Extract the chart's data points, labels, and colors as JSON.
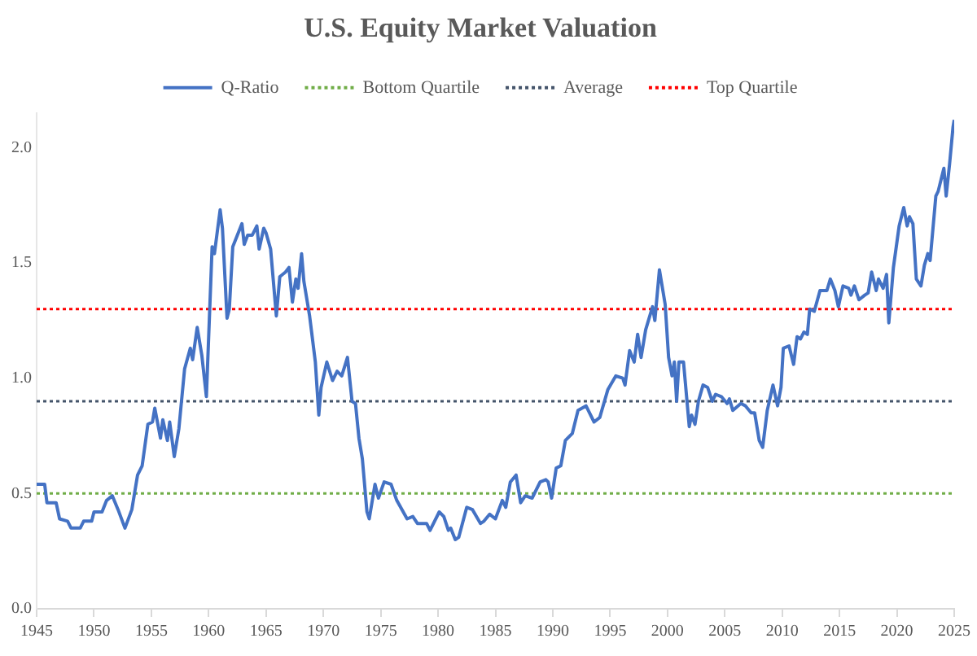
{
  "chart_data": {
    "type": "line",
    "title": "U.S. Equity Market Valuation",
    "x": [
      1945.0,
      1945.7,
      1945.9,
      1946.7,
      1947.0,
      1947.7,
      1948.0,
      1948.8,
      1949.1,
      1949.8,
      1950.0,
      1950.7,
      1951.1,
      1951.6,
      1952.1,
      1952.7,
      1953.3,
      1953.8,
      1954.2,
      1954.7,
      1955.1,
      1955.3,
      1955.8,
      1956.0,
      1956.4,
      1956.6,
      1957.0,
      1957.4,
      1957.9,
      1958.4,
      1958.6,
      1959.0,
      1959.4,
      1959.8,
      1960.3,
      1960.5,
      1961.0,
      1961.2,
      1961.6,
      1961.8,
      1962.1,
      1962.9,
      1963.1,
      1963.4,
      1963.8,
      1964.2,
      1964.4,
      1964.8,
      1965.0,
      1965.4,
      1965.9,
      1966.2,
      1966.7,
      1967.0,
      1967.3,
      1967.6,
      1967.8,
      1968.1,
      1968.3,
      1968.8,
      1969.3,
      1969.6,
      1969.8,
      1970.3,
      1970.8,
      1971.2,
      1971.6,
      1972.1,
      1972.5,
      1972.8,
      1973.1,
      1973.4,
      1973.8,
      1974.0,
      1974.5,
      1974.8,
      1975.3,
      1975.9,
      1976.4,
      1977.3,
      1977.8,
      1978.2,
      1979.0,
      1979.3,
      1980.1,
      1980.5,
      1980.9,
      1981.1,
      1981.5,
      1981.8,
      1982.5,
      1983.0,
      1983.7,
      1984.0,
      1984.5,
      1985.0,
      1985.6,
      1985.9,
      1986.3,
      1986.8,
      1987.2,
      1987.6,
      1988.2,
      1988.9,
      1989.4,
      1989.6,
      1989.9,
      1990.3,
      1990.7,
      1991.1,
      1991.7,
      1992.2,
      1992.9,
      1993.6,
      1994.1,
      1994.8,
      1995.5,
      1996.1,
      1996.3,
      1996.7,
      1997.1,
      1997.4,
      1997.7,
      1998.1,
      1998.7,
      1998.9,
      1999.3,
      1999.8,
      2000.1,
      2000.4,
      2000.6,
      2000.8,
      2001.0,
      2001.4,
      2001.9,
      2002.1,
      2002.4,
      2002.7,
      2003.1,
      2003.5,
      2003.9,
      2004.2,
      2004.7,
      2005.2,
      2005.4,
      2005.7,
      2006.4,
      2006.8,
      2007.3,
      2007.6,
      2008.0,
      2008.3,
      2008.7,
      2009.2,
      2009.6,
      2009.9,
      2010.1,
      2010.6,
      2011.0,
      2011.3,
      2011.6,
      2011.9,
      2012.2,
      2012.4,
      2012.8,
      2013.3,
      2013.9,
      2014.2,
      2014.6,
      2014.9,
      2015.3,
      2015.8,
      2016.0,
      2016.3,
      2016.7,
      2017.2,
      2017.5,
      2017.8,
      2018.2,
      2018.4,
      2018.8,
      2019.1,
      2019.3,
      2019.7,
      2020.2,
      2020.6,
      2020.9,
      2021.1,
      2021.4,
      2021.7,
      2022.1,
      2022.4,
      2022.7,
      2022.9,
      2023.4,
      2023.6,
      2024.1,
      2024.3,
      2024.6,
      2024.9,
      2025.0
    ],
    "series": [
      {
        "name": "Q-Ratio",
        "color": "#4472c4",
        "values": [
          0.54,
          0.54,
          0.46,
          0.46,
          0.39,
          0.38,
          0.35,
          0.35,
          0.38,
          0.38,
          0.42,
          0.42,
          0.47,
          0.49,
          0.43,
          0.35,
          0.43,
          0.58,
          0.62,
          0.8,
          0.81,
          0.87,
          0.74,
          0.82,
          0.73,
          0.81,
          0.66,
          0.78,
          1.04,
          1.13,
          1.08,
          1.22,
          1.1,
          0.92,
          1.57,
          1.54,
          1.73,
          1.65,
          1.26,
          1.3,
          1.57,
          1.67,
          1.58,
          1.62,
          1.62,
          1.66,
          1.56,
          1.65,
          1.63,
          1.56,
          1.27,
          1.44,
          1.46,
          1.48,
          1.33,
          1.43,
          1.39,
          1.54,
          1.42,
          1.27,
          1.07,
          0.84,
          0.96,
          1.07,
          0.99,
          1.03,
          1.01,
          1.09,
          0.9,
          0.89,
          0.74,
          0.65,
          0.42,
          0.39,
          0.54,
          0.48,
          0.55,
          0.54,
          0.47,
          0.39,
          0.4,
          0.37,
          0.37,
          0.34,
          0.42,
          0.4,
          0.34,
          0.35,
          0.3,
          0.31,
          0.44,
          0.43,
          0.37,
          0.38,
          0.41,
          0.39,
          0.47,
          0.44,
          0.55,
          0.58,
          0.46,
          0.49,
          0.48,
          0.55,
          0.56,
          0.55,
          0.48,
          0.61,
          0.62,
          0.73,
          0.76,
          0.86,
          0.88,
          0.81,
          0.83,
          0.95,
          1.01,
          1.0,
          0.97,
          1.12,
          1.07,
          1.19,
          1.09,
          1.21,
          1.31,
          1.25,
          1.47,
          1.32,
          1.09,
          1.01,
          1.07,
          0.9,
          1.07,
          1.07,
          0.79,
          0.84,
          0.8,
          0.9,
          0.97,
          0.96,
          0.9,
          0.93,
          0.92,
          0.89,
          0.91,
          0.86,
          0.89,
          0.88,
          0.85,
          0.85,
          0.73,
          0.7,
          0.86,
          0.97,
          0.88,
          0.96,
          1.13,
          1.14,
          1.06,
          1.18,
          1.17,
          1.2,
          1.19,
          1.3,
          1.29,
          1.38,
          1.38,
          1.43,
          1.38,
          1.31,
          1.4,
          1.39,
          1.36,
          1.4,
          1.34,
          1.36,
          1.37,
          1.46,
          1.38,
          1.43,
          1.39,
          1.45,
          1.24,
          1.48,
          1.66,
          1.74,
          1.66,
          1.7,
          1.67,
          1.43,
          1.4,
          1.49,
          1.54,
          1.51,
          1.79,
          1.81,
          1.91,
          1.79,
          1.93,
          2.09,
          2.12
        ]
      }
    ],
    "ref_lines": [
      {
        "axis": "y",
        "value": 0.5,
        "label": "Bottom Quartile",
        "color": "#70ad47",
        "line_style": "dotted"
      },
      {
        "axis": "y",
        "value": 0.9,
        "label": "Average",
        "color": "#44546a",
        "line_style": "dotted"
      },
      {
        "axis": "y",
        "value": 1.3,
        "label": "Top Quartile",
        "color": "#ff0000",
        "line_style": "dotted"
      }
    ],
    "xlim": [
      1945,
      2025
    ],
    "xticks": [
      1945,
      1950,
      1955,
      1960,
      1965,
      1970,
      1975,
      1980,
      1985,
      1990,
      1995,
      2000,
      2005,
      2010,
      2015,
      2020,
      2025
    ],
    "ylim": [
      0,
      2.15
    ],
    "yticks": [
      {
        "value": 0,
        "label": "0.0"
      },
      {
        "value": 0.5,
        "label": "0.5"
      },
      {
        "value": 1,
        "label": "1.0"
      },
      {
        "value": 1.5,
        "label": "1.5"
      },
      {
        "value": 2,
        "label": "2.0"
      }
    ],
    "grid": false,
    "legend": "top",
    "marker": "none",
    "line_style": "solid"
  }
}
